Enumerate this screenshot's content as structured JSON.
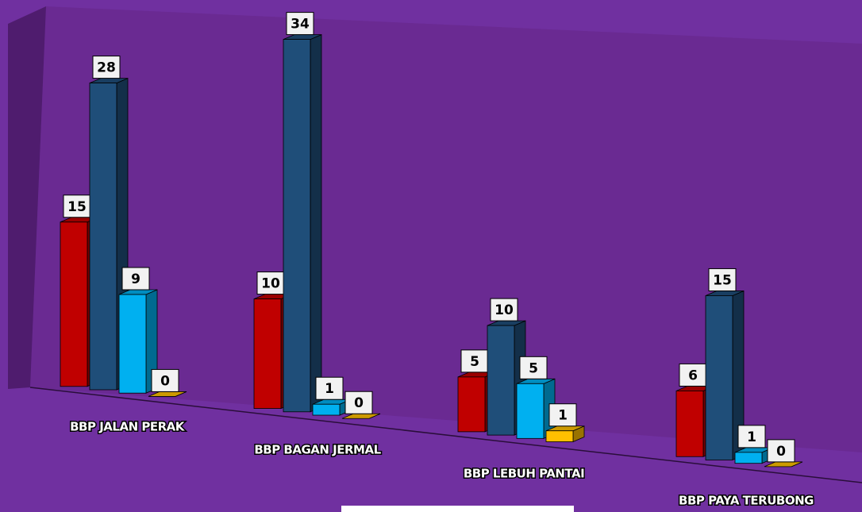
{
  "chart_data": {
    "type": "bar3d",
    "categories": [
      "BBP JALAN PERAK",
      "BBP BAGAN JERMAL",
      "BBP LEBUH PANTAI",
      "BBP PAYA TERUBONG"
    ],
    "series": [
      {
        "color": "#c00000",
        "values": [
          15,
          10,
          5,
          6
        ]
      },
      {
        "color": "#1f4e79",
        "values": [
          28,
          34,
          10,
          15
        ]
      },
      {
        "color": "#00b0f0",
        "values": [
          9,
          1,
          5,
          1
        ]
      },
      {
        "color": "#ffc000",
        "values": [
          0,
          0,
          1,
          0
        ]
      }
    ]
  }
}
